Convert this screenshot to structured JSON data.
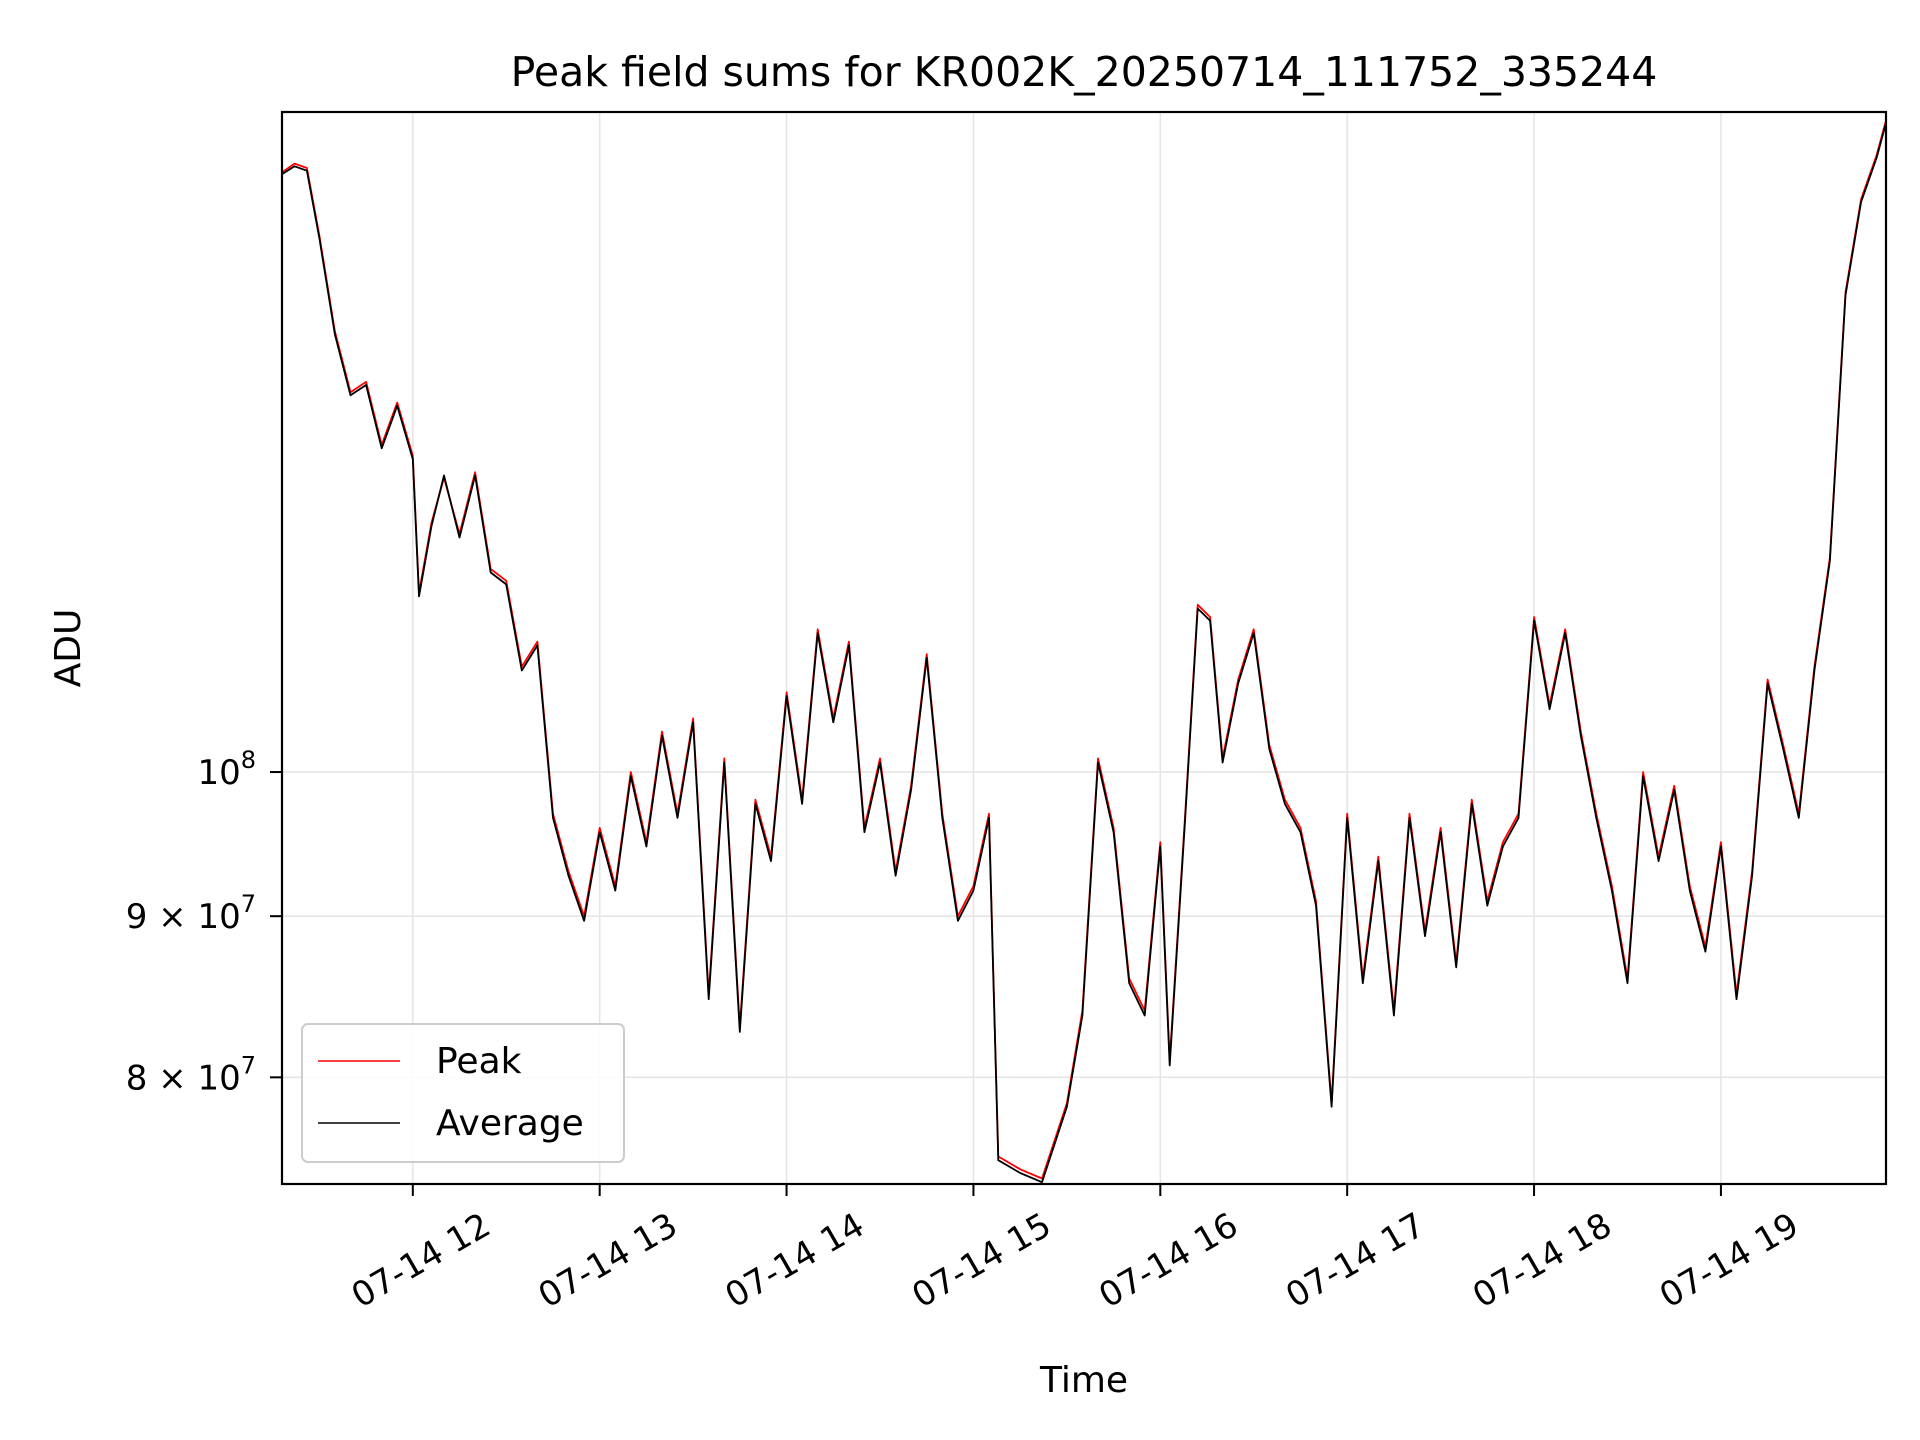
{
  "chart_data": {
    "type": "line",
    "title": "Peak field sums for KR002K_20250714_111752_335244",
    "xlabel": "Time",
    "ylabel": "ADU",
    "yscale": "log",
    "ylim": [
      74000000,
      162000000
    ],
    "xlim": [
      "07-14 11:18",
      "07-14 19:53"
    ],
    "x_ticks": [
      "07-14 12",
      "07-14 13",
      "07-14 14",
      "07-14 15",
      "07-14 16",
      "07-14 17",
      "07-14 18",
      "07-14 19"
    ],
    "y_ticks": [
      {
        "label_base": "10",
        "label_exp": "8",
        "value": 100000000
      },
      {
        "label_base": "9 × 10",
        "label_exp": "7",
        "value": 90000000
      },
      {
        "label_base": "8 × 10",
        "label_exp": "7",
        "value": 80000000
      }
    ],
    "grid": true,
    "legend_position": "lower-left",
    "series": [
      {
        "name": "Peak",
        "color": "#ff0000",
        "points": [
          [
            "07-14 11:18",
            155000000
          ],
          [
            "07-14 11:22",
            156000000
          ],
          [
            "07-14 11:26",
            155500000
          ],
          [
            "07-14 11:30",
            148000000
          ],
          [
            "07-14 11:35",
            138000000
          ],
          [
            "07-14 11:40",
            132000000
          ],
          [
            "07-14 11:45",
            133000000
          ],
          [
            "07-14 11:50",
            127000000
          ],
          [
            "07-14 11:55",
            131000000
          ],
          [
            "07-14 12:00",
            126000000
          ],
          [
            "07-14 12:02",
            114000000
          ],
          [
            "07-14 12:06",
            120000000
          ],
          [
            "07-14 12:10",
            124000000
          ],
          [
            "07-14 12:15",
            119000000
          ],
          [
            "07-14 12:20",
            124500000
          ],
          [
            "07-14 12:25",
            116000000
          ],
          [
            "07-14 12:30",
            115000000
          ],
          [
            "07-14 12:35",
            108000000
          ],
          [
            "07-14 12:40",
            110000000
          ],
          [
            "07-14 12:45",
            97000000
          ],
          [
            "07-14 12:50",
            93000000
          ],
          [
            "07-14 12:55",
            90000000
          ],
          [
            "07-14 13:00",
            96000000
          ],
          [
            "07-14 13:05",
            92000000
          ],
          [
            "07-14 13:10",
            100000000
          ],
          [
            "07-14 13:15",
            95000000
          ],
          [
            "07-14 13:20",
            103000000
          ],
          [
            "07-14 13:25",
            97000000
          ],
          [
            "07-14 13:30",
            104000000
          ],
          [
            "07-14 13:35",
            85000000
          ],
          [
            "07-14 13:40",
            101000000
          ],
          [
            "07-14 13:45",
            83000000
          ],
          [
            "07-14 13:50",
            98000000
          ],
          [
            "07-14 13:55",
            94000000
          ],
          [
            "07-14 14:00",
            106000000
          ],
          [
            "07-14 14:05",
            98000000
          ],
          [
            "07-14 14:10",
            111000000
          ],
          [
            "07-14 14:15",
            104000000
          ],
          [
            "07-14 14:20",
            110000000
          ],
          [
            "07-14 14:25",
            96000000
          ],
          [
            "07-14 14:30",
            101000000
          ],
          [
            "07-14 14:35",
            93000000
          ],
          [
            "07-14 14:40",
            99000000
          ],
          [
            "07-14 14:45",
            109000000
          ],
          [
            "07-14 14:50",
            97000000
          ],
          [
            "07-14 14:55",
            90000000
          ],
          [
            "07-14 15:00",
            92000000
          ],
          [
            "07-14 15:05",
            97000000
          ],
          [
            "07-14 15:08",
            75500000
          ],
          [
            "07-14 15:15",
            74800000
          ],
          [
            "07-14 15:22",
            74300000
          ],
          [
            "07-14 15:30",
            78500000
          ],
          [
            "07-14 15:35",
            84000000
          ],
          [
            "07-14 15:40",
            101000000
          ],
          [
            "07-14 15:45",
            96000000
          ],
          [
            "07-14 15:50",
            86000000
          ],
          [
            "07-14 15:55",
            84000000
          ],
          [
            "07-14 16:00",
            95000000
          ],
          [
            "07-14 16:03",
            81000000
          ],
          [
            "07-14 16:08",
            97000000
          ],
          [
            "07-14 16:12",
            113000000
          ],
          [
            "07-14 16:16",
            112000000
          ],
          [
            "07-14 16:20",
            101000000
          ],
          [
            "07-14 16:25",
            107000000
          ],
          [
            "07-14 16:30",
            111000000
          ],
          [
            "07-14 16:35",
            102000000
          ],
          [
            "07-14 16:40",
            98000000
          ],
          [
            "07-14 16:45",
            96000000
          ],
          [
            "07-14 16:50",
            91000000
          ],
          [
            "07-14 16:55",
            78500000
          ],
          [
            "07-14 17:00",
            97000000
          ],
          [
            "07-14 17:05",
            86000000
          ],
          [
            "07-14 17:10",
            94000000
          ],
          [
            "07-14 17:15",
            84000000
          ],
          [
            "07-14 17:20",
            97000000
          ],
          [
            "07-14 17:25",
            89000000
          ],
          [
            "07-14 17:30",
            96000000
          ],
          [
            "07-14 17:35",
            87000000
          ],
          [
            "07-14 17:40",
            98000000
          ],
          [
            "07-14 17:45",
            91000000
          ],
          [
            "07-14 17:50",
            95000000
          ],
          [
            "07-14 17:55",
            97000000
          ],
          [
            "07-14 18:00",
            112000000
          ],
          [
            "07-14 18:05",
            105000000
          ],
          [
            "07-14 18:10",
            111000000
          ],
          [
            "07-14 18:15",
            103000000
          ],
          [
            "07-14 18:20",
            97000000
          ],
          [
            "07-14 18:25",
            92000000
          ],
          [
            "07-14 18:30",
            86000000
          ],
          [
            "07-14 18:35",
            100000000
          ],
          [
            "07-14 18:40",
            94000000
          ],
          [
            "07-14 18:45",
            99000000
          ],
          [
            "07-14 18:50",
            92000000
          ],
          [
            "07-14 18:55",
            88000000
          ],
          [
            "07-14 19:00",
            95000000
          ],
          [
            "07-14 19:05",
            85000000
          ],
          [
            "07-14 19:10",
            93000000
          ],
          [
            "07-14 19:15",
            107000000
          ],
          [
            "07-14 19:20",
            102000000
          ],
          [
            "07-14 19:25",
            97000000
          ],
          [
            "07-14 19:30",
            108000000
          ],
          [
            "07-14 19:35",
            117000000
          ],
          [
            "07-14 19:40",
            142000000
          ],
          [
            "07-14 19:45",
            152000000
          ],
          [
            "07-14 19:50",
            157000000
          ],
          [
            "07-14 19:53",
            161000000
          ]
        ]
      },
      {
        "name": "Average",
        "color": "#000000",
        "points": [
          [
            "07-14 11:18",
            154800000
          ],
          [
            "07-14 11:22",
            155700000
          ],
          [
            "07-14 11:26",
            155200000
          ],
          [
            "07-14 11:30",
            147700000
          ],
          [
            "07-14 11:35",
            137700000
          ],
          [
            "07-14 11:40",
            131700000
          ],
          [
            "07-14 11:45",
            132700000
          ],
          [
            "07-14 11:50",
            126700000
          ],
          [
            "07-14 11:55",
            130700000
          ],
          [
            "07-14 12:00",
            125700000
          ],
          [
            "07-14 12:02",
            113700000
          ],
          [
            "07-14 12:06",
            119700000
          ],
          [
            "07-14 12:10",
            124200000
          ],
          [
            "07-14 12:15",
            118700000
          ],
          [
            "07-14 12:20",
            124200000
          ],
          [
            "07-14 12:25",
            115700000
          ],
          [
            "07-14 12:30",
            114700000
          ],
          [
            "07-14 12:35",
            107700000
          ],
          [
            "07-14 12:40",
            109700000
          ],
          [
            "07-14 12:45",
            96700000
          ],
          [
            "07-14 12:50",
            92700000
          ],
          [
            "07-14 12:55",
            89700000
          ],
          [
            "07-14 13:00",
            95700000
          ],
          [
            "07-14 13:05",
            91700000
          ],
          [
            "07-14 13:10",
            99700000
          ],
          [
            "07-14 13:15",
            94700000
          ],
          [
            "07-14 13:20",
            102700000
          ],
          [
            "07-14 13:25",
            96700000
          ],
          [
            "07-14 13:30",
            103700000
          ],
          [
            "07-14 13:35",
            84700000
          ],
          [
            "07-14 13:40",
            100700000
          ],
          [
            "07-14 13:45",
            82700000
          ],
          [
            "07-14 13:50",
            97700000
          ],
          [
            "07-14 13:55",
            93700000
          ],
          [
            "07-14 14:00",
            105700000
          ],
          [
            "07-14 14:05",
            97700000
          ],
          [
            "07-14 14:10",
            110700000
          ],
          [
            "07-14 14:15",
            103700000
          ],
          [
            "07-14 14:20",
            109700000
          ],
          [
            "07-14 14:25",
            95700000
          ],
          [
            "07-14 14:30",
            100700000
          ],
          [
            "07-14 14:35",
            92700000
          ],
          [
            "07-14 14:40",
            98700000
          ],
          [
            "07-14 14:45",
            108700000
          ],
          [
            "07-14 14:50",
            96700000
          ],
          [
            "07-14 14:55",
            89700000
          ],
          [
            "07-14 15:00",
            91700000
          ],
          [
            "07-14 15:05",
            96700000
          ],
          [
            "07-14 15:08",
            75300000
          ],
          [
            "07-14 15:15",
            74600000
          ],
          [
            "07-14 15:22",
            74100000
          ],
          [
            "07-14 15:30",
            78300000
          ],
          [
            "07-14 15:35",
            83700000
          ],
          [
            "07-14 15:40",
            100700000
          ],
          [
            "07-14 15:45",
            95700000
          ],
          [
            "07-14 15:50",
            85700000
          ],
          [
            "07-14 15:55",
            83700000
          ],
          [
            "07-14 16:00",
            94700000
          ],
          [
            "07-14 16:03",
            80700000
          ],
          [
            "07-14 16:08",
            96700000
          ],
          [
            "07-14 16:12",
            112700000
          ],
          [
            "07-14 16:16",
            111700000
          ],
          [
            "07-14 16:20",
            100700000
          ],
          [
            "07-14 16:25",
            106700000
          ],
          [
            "07-14 16:30",
            110700000
          ],
          [
            "07-14 16:35",
            101700000
          ],
          [
            "07-14 16:40",
            97700000
          ],
          [
            "07-14 16:45",
            95700000
          ],
          [
            "07-14 16:50",
            90700000
          ],
          [
            "07-14 16:55",
            78300000
          ],
          [
            "07-14 17:00",
            96700000
          ],
          [
            "07-14 17:05",
            85700000
          ],
          [
            "07-14 17:10",
            93700000
          ],
          [
            "07-14 17:15",
            83700000
          ],
          [
            "07-14 17:20",
            96700000
          ],
          [
            "07-14 17:25",
            88700000
          ],
          [
            "07-14 17:30",
            95700000
          ],
          [
            "07-14 17:35",
            86700000
          ],
          [
            "07-14 17:40",
            97700000
          ],
          [
            "07-14 17:45",
            90700000
          ],
          [
            "07-14 17:50",
            94700000
          ],
          [
            "07-14 17:55",
            96700000
          ],
          [
            "07-14 18:00",
            111700000
          ],
          [
            "07-14 18:05",
            104700000
          ],
          [
            "07-14 18:10",
            110700000
          ],
          [
            "07-14 18:15",
            102700000
          ],
          [
            "07-14 18:20",
            96700000
          ],
          [
            "07-14 18:25",
            91700000
          ],
          [
            "07-14 18:30",
            85700000
          ],
          [
            "07-14 18:35",
            99700000
          ],
          [
            "07-14 18:40",
            93700000
          ],
          [
            "07-14 18:45",
            98700000
          ],
          [
            "07-14 18:50",
            91700000
          ],
          [
            "07-14 18:55",
            87700000
          ],
          [
            "07-14 19:00",
            94700000
          ],
          [
            "07-14 19:05",
            84700000
          ],
          [
            "07-14 19:10",
            92700000
          ],
          [
            "07-14 19:15",
            106700000
          ],
          [
            "07-14 19:20",
            101700000
          ],
          [
            "07-14 19:25",
            96700000
          ],
          [
            "07-14 19:30",
            107700000
          ],
          [
            "07-14 19:35",
            116700000
          ],
          [
            "07-14 19:40",
            141700000
          ],
          [
            "07-14 19:45",
            151700000
          ],
          [
            "07-14 19:50",
            156700000
          ],
          [
            "07-14 19:53",
            160700000
          ]
        ]
      }
    ]
  }
}
